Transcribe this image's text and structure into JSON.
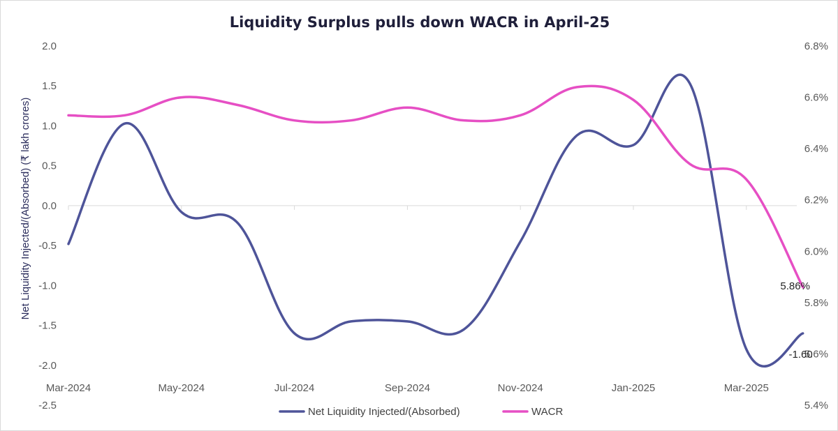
{
  "chart_data": {
    "type": "line",
    "title": "Liquidity Surplus pulls down WACR in April-25",
    "ylabel": "Net Liquidity Injected/(Absorbed) (₹ lakh crores)",
    "y2label": "",
    "ylim": [
      -2.5,
      2.0
    ],
    "y2lim": [
      5.4,
      6.8
    ],
    "yticks": [
      "2.0",
      "1.5",
      "1.0",
      "0.5",
      "0.0",
      "-0.5",
      "-1.0",
      "-1.5",
      "-2.0",
      "-2.5"
    ],
    "y2ticks": [
      "6.8%",
      "6.6%",
      "6.4%",
      "6.2%",
      "6.0%",
      "5.8%",
      "5.6%",
      "5.4%"
    ],
    "x_labels": [
      "Mar-2024",
      "May-2024",
      "Jul-2024",
      "Sep-2024",
      "Nov-2024",
      "Jan-2025",
      "Mar-2025"
    ],
    "x": [
      "Mar-2024",
      "Apr-2024",
      "May-2024",
      "Jun-2024",
      "Jul-2024",
      "Aug-2024",
      "Sep-2024",
      "Oct-2024",
      "Nov-2024",
      "Dec-2024",
      "Jan-2025",
      "Feb-2025",
      "Mar-2025",
      "Apr-2025"
    ],
    "series": [
      {
        "name": "Net Liquidity Injected/(Absorbed)",
        "axis": "left",
        "color": "#4e5499",
        "values": [
          -0.48,
          1.03,
          -0.08,
          -0.22,
          -1.6,
          -1.45,
          -1.45,
          -1.55,
          -0.45,
          0.88,
          0.76,
          1.53,
          -1.8,
          -1.6
        ],
        "last_label": "-1.60"
      },
      {
        "name": "WACR",
        "axis": "right",
        "color": "#e64fc4",
        "values": [
          6.53,
          6.53,
          6.6,
          6.57,
          6.51,
          6.51,
          6.56,
          6.51,
          6.53,
          6.64,
          6.59,
          6.34,
          6.28,
          5.86
        ],
        "last_label": "5.86%"
      }
    ],
    "legend_position": "bottom",
    "grid": false
  }
}
